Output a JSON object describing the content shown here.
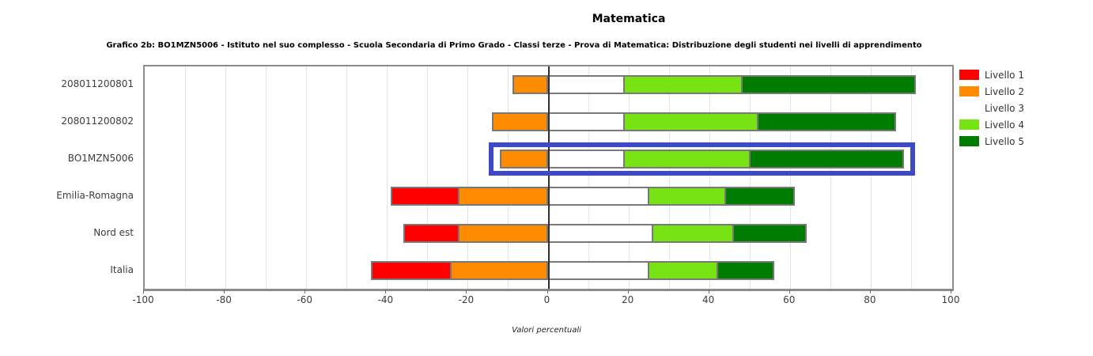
{
  "chart_data": {
    "type": "bar",
    "orientation": "horizontal-diverging-stacked",
    "title": "Matematica",
    "subtitle": "Grafico 2b: BO1MZN5006 - Istituto nel suo complesso - Scuola Secondaria di Primo Grado - Classi terze - Prova di Matematica: Distribuzione degli studenti nei livelli di apprendimento",
    "xlabel": "Valori percentuali",
    "xlim": [
      -100,
      100
    ],
    "x_major_ticks": [
      -100,
      -80,
      -60,
      -40,
      -20,
      0,
      20,
      40,
      60,
      80,
      100
    ],
    "x_minor_step": 10,
    "grid": true,
    "legend_position": "top-right",
    "categories": [
      "208011200801",
      "208011200802",
      "BO1MZN5006",
      "Emilia-Romagna",
      "Nord est",
      "Italia"
    ],
    "negative_side_series": [
      "Livello 1",
      "Livello 2"
    ],
    "series": [
      {
        "name": "Livello 1",
        "color": "#ff0000",
        "swatch_visible": true,
        "values": [
          0,
          0,
          0,
          17,
          14,
          20
        ]
      },
      {
        "name": "Livello 2",
        "color": "#ff8c00",
        "swatch_visible": true,
        "values": [
          9,
          14,
          12,
          22,
          22,
          24
        ]
      },
      {
        "name": "Livello 3",
        "color": "#ffffff",
        "swatch_visible": false,
        "values": [
          19,
          19,
          19,
          25,
          26,
          25
        ]
      },
      {
        "name": "Livello 4",
        "color": "#77e312",
        "swatch_visible": true,
        "values": [
          29,
          33,
          31,
          19,
          20,
          17
        ]
      },
      {
        "name": "Livello 5",
        "color": "#007d00",
        "swatch_visible": true,
        "values": [
          43,
          34,
          38,
          17,
          18,
          14
        ]
      }
    ],
    "highlight": {
      "category": "BO1MZN5006",
      "color": "#3e49c4"
    }
  }
}
